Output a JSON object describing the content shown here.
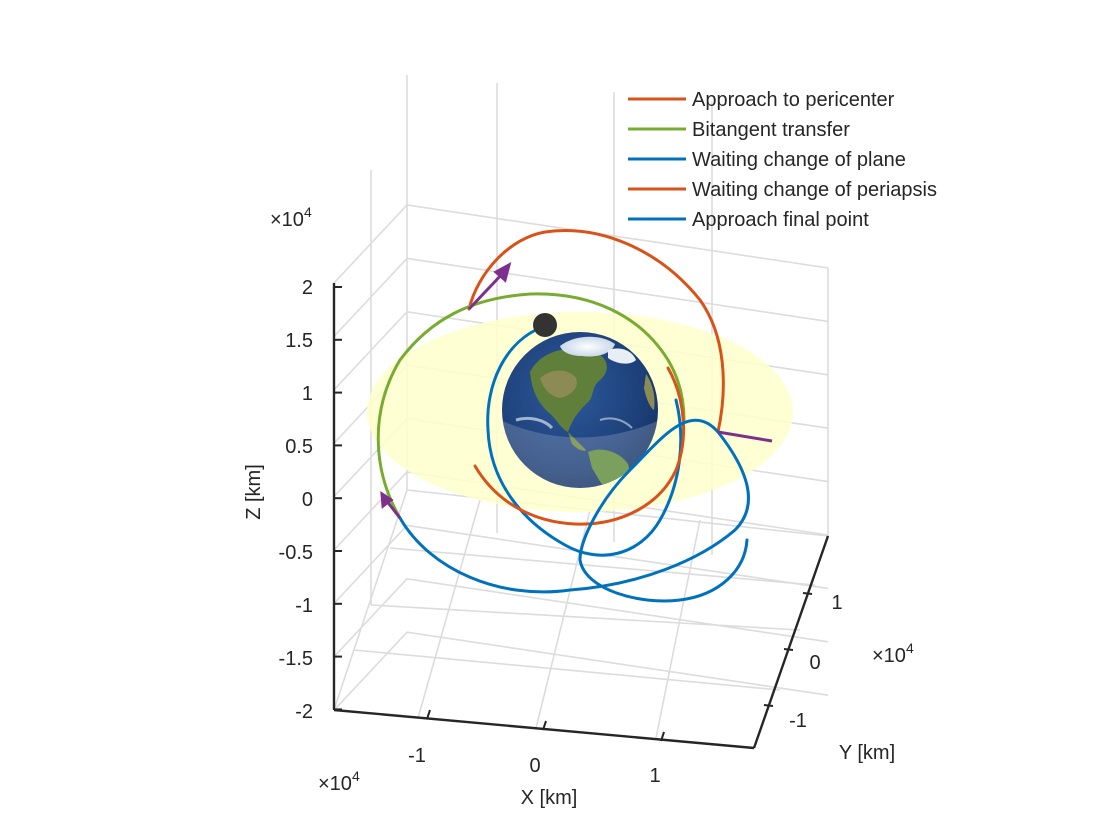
{
  "chart_data": {
    "type": "line",
    "view": "3d",
    "xlabel": "X [km]",
    "ylabel": "Y [km]",
    "zlabel": "Z [km]",
    "x_exponent": "×10",
    "x_exponent_power": "4",
    "y_exponent": "×10",
    "y_exponent_power": "4",
    "z_exponent": "×10",
    "z_exponent_power": "4",
    "x_ticks": [
      "-1",
      "0",
      "1"
    ],
    "y_ticks": [
      "-1",
      "0",
      "1"
    ],
    "z_ticks": [
      "-2",
      "-1.5",
      "-1",
      "-0.5",
      "0",
      "0.5",
      "1",
      "1.5",
      "2"
    ],
    "grid": true,
    "legend_position": "top-right",
    "legend": [
      {
        "label": "Approach to pericenter",
        "color": "#D95319"
      },
      {
        "label": "Bitangent transfer",
        "color": "#77AC30"
      },
      {
        "label": "Waiting change of plane",
        "color": "#0072BD"
      },
      {
        "label": "Waiting change of periapsis",
        "color": "#D95319"
      },
      {
        "label": "Approach final point",
        "color": "#0072BD"
      }
    ],
    "series": [
      {
        "name": "Approach to pericenter",
        "color": "#D95319"
      },
      {
        "name": "Bitangent transfer",
        "color": "#77AC30"
      },
      {
        "name": "Waiting change of plane",
        "color": "#0072BD"
      },
      {
        "name": "Waiting change of periapsis",
        "color": "#D95319"
      },
      {
        "name": "Approach final point",
        "color": "#0072BD"
      }
    ],
    "colors": {
      "orange": "#D95319",
      "green": "#77AC30",
      "blue": "#0072BD",
      "arrow": "#7E2F8E",
      "equatorial_plane": "#FFFFCC",
      "marker": "#333333"
    }
  }
}
